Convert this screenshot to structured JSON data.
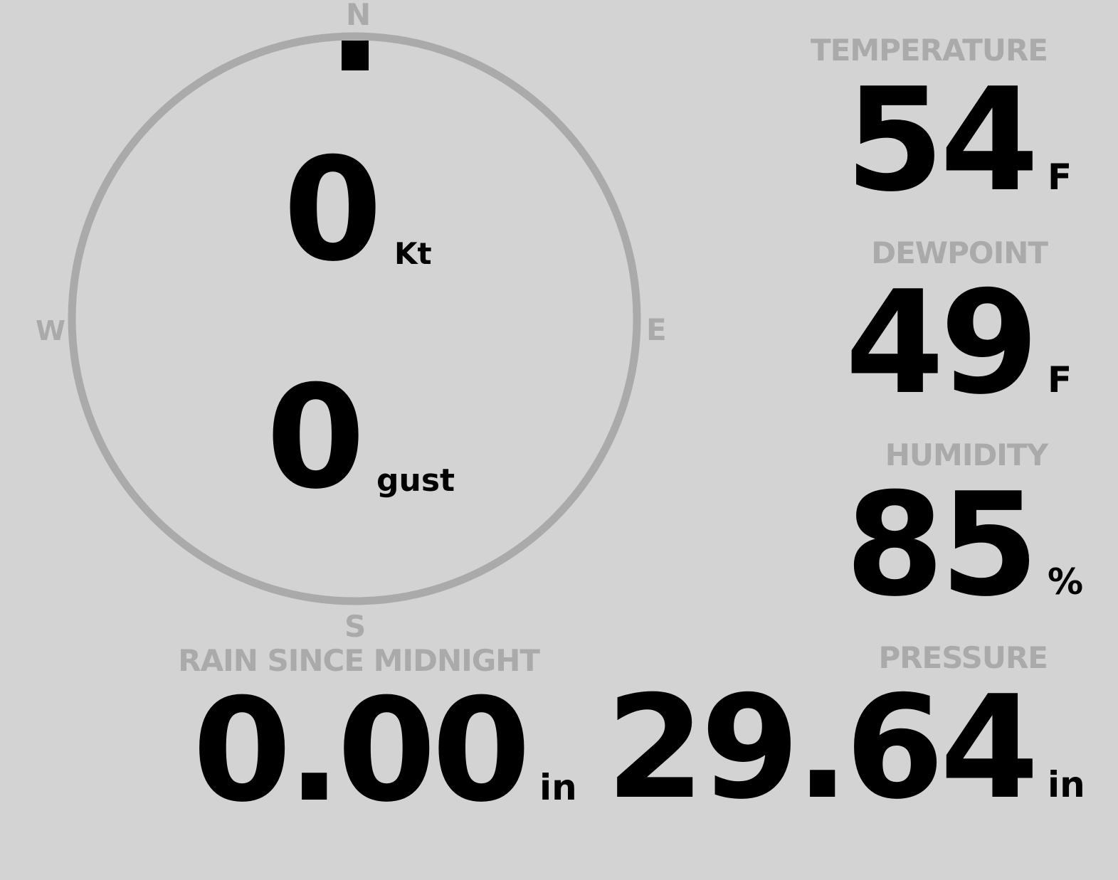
{
  "wind": {
    "compass": {
      "north": "N",
      "south": "S",
      "east": "E",
      "west": "W"
    },
    "direction_deg": 0,
    "speed": "0",
    "speed_unit": "Kt",
    "gust": "0",
    "gust_unit": "gust"
  },
  "temperature": {
    "label": "TEMPERATURE",
    "value": "54",
    "unit": "F"
  },
  "dewpoint": {
    "label": "DEWPOINT",
    "value": "49",
    "unit": "F"
  },
  "humidity": {
    "label": "HUMIDITY",
    "value": "85",
    "unit": "%"
  },
  "rain": {
    "label": "RAIN SINCE MIDNIGHT",
    "value": "0.00",
    "unit": "in"
  },
  "pressure": {
    "label": "PRESSURE",
    "value": "29.64",
    "unit": "in"
  },
  "colors": {
    "background": "#d3d3d3",
    "muted": "#aaaaaa",
    "text": "#000000"
  }
}
